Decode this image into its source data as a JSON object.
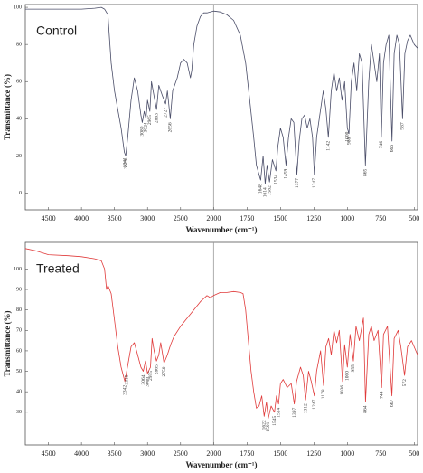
{
  "chart_data": [
    {
      "type": "line",
      "panel_label": "Control",
      "x_label": "Wavenumber (cm⁻¹)",
      "y_label": "Transmittance (%)",
      "xlim": [
        4850,
        475
      ],
      "x_scale_change": 2000,
      "xticks": [
        4500,
        4000,
        3500,
        3000,
        2500,
        2000,
        1750,
        1500,
        1250,
        1000,
        750,
        500
      ],
      "ylim": [
        -9,
        101.5
      ],
      "yticks": [
        0,
        20,
        40,
        60,
        80,
        100
      ],
      "x": [
        4850,
        4500,
        4000,
        3800,
        3700,
        3650,
        3600,
        3550,
        3500,
        3450,
        3400,
        3350,
        3330,
        3300,
        3250,
        3200,
        3150,
        3100,
        3080,
        3050,
        3024,
        3000,
        2965,
        2940,
        2900,
        2863,
        2830,
        2800,
        2770,
        2727,
        2700,
        2656,
        2620,
        2550,
        2500,
        2450,
        2400,
        2350,
        2330,
        2300,
        2250,
        2200,
        2150,
        2100,
        2000,
        1950,
        1900,
        1850,
        1800,
        1760,
        1730,
        1700,
        1680,
        1660,
        1648,
        1630,
        1614,
        1600,
        1582,
        1560,
        1534,
        1520,
        1500,
        1480,
        1459,
        1440,
        1420,
        1400,
        1377,
        1360,
        1340,
        1320,
        1300,
        1280,
        1260,
        1247,
        1230,
        1200,
        1180,
        1160,
        1142,
        1120,
        1100,
        1080,
        1060,
        1040,
        1020,
        1000,
        988,
        970,
        950,
        930,
        910,
        890,
        865,
        840,
        820,
        800,
        780,
        760,
        746,
        730,
        710,
        690,
        666,
        650,
        630,
        610,
        587,
        570,
        550,
        530,
        500,
        475
      ],
      "series": [
        {
          "name": "Control",
          "color": "#4a4d68",
          "values": [
            99,
            99,
            99,
            99.5,
            100,
            99,
            96,
            70,
            55,
            45,
            35,
            22,
            20,
            30,
            50,
            62,
            55,
            42,
            38,
            44,
            40,
            50,
            44,
            60,
            52,
            45,
            58,
            55,
            52,
            48,
            55,
            40,
            55,
            62,
            70,
            72,
            70,
            62,
            66,
            80,
            90,
            95,
            97,
            97,
            98,
            97.5,
            96,
            93,
            85,
            70,
            50,
            30,
            15,
            10,
            7,
            20,
            5,
            15,
            6,
            18,
            12,
            25,
            35,
            30,
            15,
            30,
            40,
            38,
            10,
            28,
            40,
            42,
            35,
            40,
            30,
            10,
            30,
            45,
            55,
            45,
            30,
            55,
            65,
            55,
            62,
            50,
            60,
            35,
            32,
            60,
            70,
            55,
            75,
            70,
            15,
            60,
            80,
            70,
            60,
            75,
            30,
            70,
            80,
            85,
            28,
            75,
            85,
            80,
            40,
            75,
            82,
            85,
            80,
            78
          ]
        }
      ],
      "peaks": [
        3341,
        3329,
        3080,
        3024,
        2965,
        2863,
        2727,
        2656,
        1648,
        1614,
        1582,
        1534,
        1459,
        1377,
        1247,
        1142,
        1000,
        988,
        865,
        746,
        666,
        587
      ]
    },
    {
      "type": "line",
      "panel_label": "Treated",
      "x_label": "Wavenumber (cm⁻¹)",
      "y_label": "Transmittance (%)",
      "xlim": [
        4850,
        475
      ],
      "x_scale_change": 2000,
      "xticks": [
        4500,
        4000,
        3500,
        3000,
        2500,
        2000,
        1750,
        1500,
        1250,
        1000,
        750,
        500
      ],
      "ylim": [
        14,
        113
      ],
      "yticks": [
        30,
        40,
        50,
        60,
        70,
        80,
        90,
        100
      ],
      "x": [
        4850,
        4700,
        4500,
        4200,
        4000,
        3800,
        3700,
        3650,
        3620,
        3600,
        3550,
        3500,
        3450,
        3400,
        3342,
        3315,
        3250,
        3200,
        3150,
        3100,
        3064,
        3030,
        3000,
        2955,
        2930,
        2900,
        2865,
        2830,
        2800,
        2750,
        2700,
        2650,
        2600,
        2500,
        2400,
        2300,
        2200,
        2100,
        2050,
        2000,
        1950,
        1900,
        1850,
        1800,
        1780,
        1760,
        1740,
        1720,
        1700,
        1680,
        1660,
        1640,
        1622,
        1605,
        1591,
        1570,
        1545,
        1530,
        1514,
        1500,
        1480,
        1450,
        1420,
        1397,
        1380,
        1350,
        1330,
        1312,
        1290,
        1270,
        1247,
        1230,
        1200,
        1178,
        1160,
        1140,
        1120,
        1100,
        1080,
        1060,
        1036,
        1020,
        1000,
        980,
        955,
        935,
        910,
        880,
        864,
        840,
        820,
        800,
        770,
        744,
        730,
        700,
        667,
        650,
        620,
        600,
        572,
        550,
        520,
        475
      ],
      "series": [
        {
          "name": "Treated",
          "color": "#e03a3a",
          "values": [
            110,
            109,
            107,
            106.5,
            106,
            105,
            104,
            100,
            90,
            92,
            88,
            75,
            62,
            52,
            45,
            50,
            62,
            64,
            58,
            52,
            50,
            55,
            49,
            52,
            66,
            60,
            55,
            58,
            64,
            54,
            58,
            63,
            67,
            72,
            76,
            80,
            84,
            87,
            86,
            87,
            88.5,
            88.5,
            89,
            88.5,
            88,
            80,
            65,
            50,
            40,
            32,
            33,
            38,
            28,
            35,
            27,
            33,
            30,
            38,
            34,
            44,
            46,
            42,
            44,
            34,
            45,
            52,
            48,
            36,
            50,
            45,
            38,
            50,
            60,
            43,
            62,
            66,
            58,
            70,
            64,
            70,
            45,
            63,
            52,
            68,
            55,
            72,
            65,
            76,
            35,
            68,
            72,
            65,
            70,
            42,
            68,
            72,
            38,
            66,
            70,
            62,
            48,
            62,
            65,
            58
          ]
        }
      ],
      "peaks": [
        3342,
        3315,
        3064,
        3000,
        2955,
        2865,
        2750,
        1622,
        1591,
        1545,
        1514,
        1397,
        1312,
        1247,
        1178,
        1036,
        1000,
        955,
        864,
        744,
        667,
        572
      ]
    }
  ]
}
